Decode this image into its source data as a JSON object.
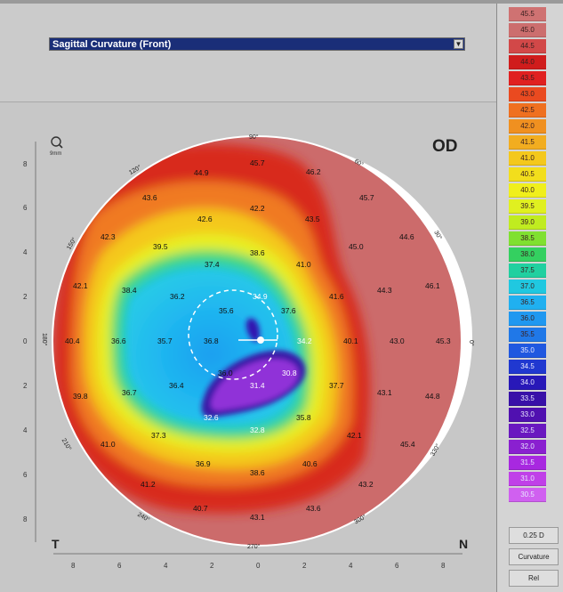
{
  "map_type_select": {
    "selected": "Sagittal Curvature (Front)"
  },
  "map": {
    "eye_label": "OD",
    "left_letter": "T",
    "right_letter": "N",
    "zoom_label": "9mm",
    "angle_labels": [
      "90°",
      "60°",
      "30°",
      "0°",
      "330°",
      "300°",
      "270°",
      "240°",
      "210°",
      "180°",
      "150°",
      "120°"
    ],
    "y_ticks": [
      "8",
      "6",
      "4",
      "2",
      "0",
      "2",
      "4",
      "6",
      "8"
    ],
    "x_ticks": [
      "8",
      "6",
      "4",
      "2",
      "0",
      "2",
      "4",
      "6",
      "8"
    ],
    "values": [
      {
        "label": "45.7"
      },
      {
        "label": "44.9"
      },
      {
        "label": "46.2"
      },
      {
        "label": "43.6"
      },
      {
        "label": "45.7"
      },
      {
        "label": "42.6"
      },
      {
        "label": "42.2"
      },
      {
        "label": "43.5"
      },
      {
        "label": "42.3"
      },
      {
        "label": "44.6"
      },
      {
        "label": "39.5"
      },
      {
        "label": "38.6"
      },
      {
        "label": "45.0"
      },
      {
        "label": "37.4"
      },
      {
        "label": "41.0"
      },
      {
        "label": "42.1"
      },
      {
        "label": "38.4"
      },
      {
        "label": "36.2"
      },
      {
        "label": "34.9"
      },
      {
        "label": "41.6"
      },
      {
        "label": "44.3"
      },
      {
        "label": "46.1"
      },
      {
        "label": "35.6"
      },
      {
        "label": "37.6"
      },
      {
        "label": "40.4"
      },
      {
        "label": "36.6"
      },
      {
        "label": "35.7"
      },
      {
        "label": "36.8"
      },
      {
        "label": "34.2"
      },
      {
        "label": "40.1"
      },
      {
        "label": "43.0"
      },
      {
        "label": "45.3"
      },
      {
        "label": "36.0"
      },
      {
        "label": "30.8"
      },
      {
        "label": "36.4"
      },
      {
        "label": "31.4"
      },
      {
        "label": "37.7"
      },
      {
        "label": "39.8"
      },
      {
        "label": "36.7"
      },
      {
        "label": "43.1"
      },
      {
        "label": "44.8"
      },
      {
        "label": "32.6"
      },
      {
        "label": "35.8"
      },
      {
        "label": "37.3"
      },
      {
        "label": "32.8"
      },
      {
        "label": "42.1"
      },
      {
        "label": "41.0"
      },
      {
        "label": "45.4"
      },
      {
        "label": "36.9"
      },
      {
        "label": "40.6"
      },
      {
        "label": "38.6"
      },
      {
        "label": "41.2"
      },
      {
        "label": "43.2"
      },
      {
        "label": "40.7"
      },
      {
        "label": "43.6"
      },
      {
        "label": "43.1"
      }
    ]
  },
  "scale": {
    "values": [
      "45.5",
      "45.0",
      "44.5",
      "44.0",
      "43.5",
      "43.0",
      "42.5",
      "42.0",
      "41.5",
      "41.0",
      "40.5",
      "40.0",
      "39.5",
      "39.0",
      "38.5",
      "38.0",
      "37.5",
      "37.0",
      "36.5",
      "36.0",
      "35.5",
      "35.0",
      "34.5",
      "34.0",
      "33.5",
      "33.0",
      "32.5",
      "32.0",
      "31.5",
      "31.0",
      "30.5"
    ],
    "colors": [
      "#cf7272",
      "#cc6e6e",
      "#d24848",
      "#d01c1c",
      "#e02020",
      "#ea4a20",
      "#ef7020",
      "#f09020",
      "#f2ad20",
      "#f4c81c",
      "#f2de1c",
      "#f0ef1c",
      "#e0f020",
      "#c0ec20",
      "#80e030",
      "#34d060",
      "#20d0a0",
      "#20c8e0",
      "#20b0f0",
      "#2098f0",
      "#2078e8",
      "#2058e0",
      "#2038d0",
      "#2818b8",
      "#3810a8",
      "#5010b0",
      "#6a18c0",
      "#8a20d0",
      "#a828e0",
      "#c040e8",
      "#d060f0"
    ],
    "step": "0.25 D",
    "mode": "Curvature",
    "ref": "Rel"
  }
}
